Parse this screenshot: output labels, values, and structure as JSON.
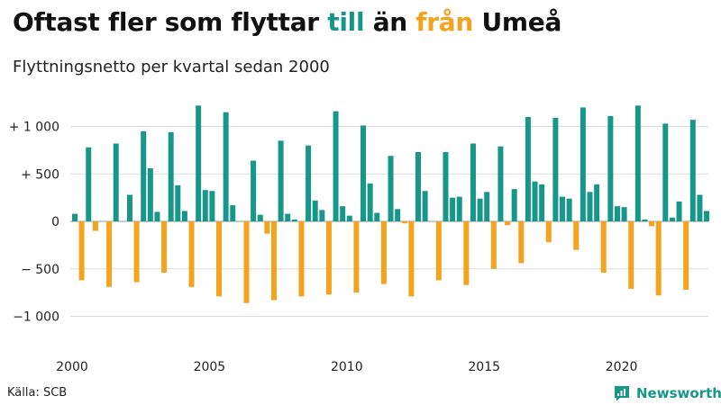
{
  "title": {
    "prefix": "Oftast fler som flyttar ",
    "in_word": "till",
    "middle": " än ",
    "out_word": "från",
    "suffix": " Umeå"
  },
  "subtitle": "Flyttningsnetto per kvartal sedan 2000",
  "source": "Källa: SCB",
  "brand": {
    "name": "Newsworthy",
    "icon": "newsworthy-logo-icon"
  },
  "colors": {
    "positive": "#16978a",
    "negative": "#f5a21e",
    "grid": "#dcdcdc",
    "axis": "#555555"
  },
  "chart_data": {
    "type": "bar",
    "title": "Flyttningsnetto per kvartal sedan 2000",
    "xlabel": "",
    "ylabel": "",
    "ylim": [
      -1300,
      1300
    ],
    "yticks": [
      {
        "value": 1000,
        "label": "+ 1 000"
      },
      {
        "value": 500,
        "label": "+   500"
      },
      {
        "value": 0,
        "label": "0"
      },
      {
        "value": -500,
        "label": "− 500"
      },
      {
        "value": -1000,
        "label": "−1 000"
      }
    ],
    "xticks": [
      "2000",
      "2005",
      "2010",
      "2015",
      "2020"
    ],
    "start_year": 2000,
    "grid": true,
    "legend": "none",
    "series": [
      {
        "values": [
          80,
          -620,
          780,
          -100,
          0,
          -690,
          820,
          0,
          280,
          -640,
          950,
          560,
          100,
          -540,
          940,
          380,
          110,
          -690,
          1220,
          330,
          320,
          -790,
          1150,
          170,
          0,
          -860,
          640,
          70,
          -130,
          -830,
          850,
          80,
          20,
          -790,
          800,
          220,
          120,
          -770,
          1160,
          160,
          60,
          -750,
          1010,
          400,
          90,
          -660,
          690,
          130,
          -20,
          -790,
          730,
          320,
          0,
          -620,
          730,
          250,
          260,
          -670,
          820,
          240,
          310,
          -500,
          790,
          -40,
          340,
          -440,
          1100,
          420,
          390,
          -220,
          1090,
          260,
          240,
          -300,
          1200,
          310,
          390,
          -540,
          1110,
          160,
          150,
          -710,
          1220,
          20,
          -50,
          -780,
          1030,
          40,
          210,
          -720,
          1070,
          280,
          110
        ]
      }
    ]
  }
}
